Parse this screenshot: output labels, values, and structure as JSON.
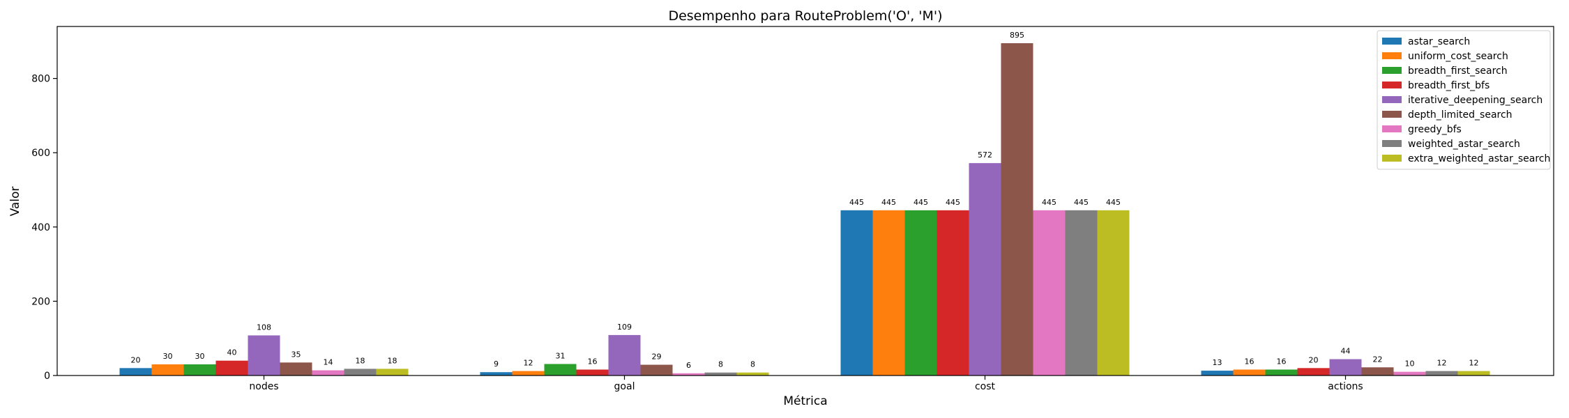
{
  "chart_data": {
    "type": "bar",
    "title": "Desempenho para RouteProblem('O', 'M')",
    "xlabel": "Métrica",
    "ylabel": "Valor",
    "categories": [
      "nodes",
      "goal",
      "cost",
      "actions"
    ],
    "ylim": [
      0,
      940
    ],
    "yticks": [
      0,
      200,
      400,
      600,
      800
    ],
    "legend_position": "top-right",
    "series": [
      {
        "name": "astar_search",
        "color": "#1f77b4",
        "values": [
          20,
          9,
          445,
          13
        ]
      },
      {
        "name": "uniform_cost_search",
        "color": "#ff7f0e",
        "values": [
          30,
          12,
          445,
          16
        ]
      },
      {
        "name": "breadth_first_search",
        "color": "#2ca02c",
        "values": [
          30,
          31,
          445,
          16
        ]
      },
      {
        "name": "breadth_first_bfs",
        "color": "#d62728",
        "values": [
          40,
          16,
          445,
          20
        ]
      },
      {
        "name": "iterative_deepening_search",
        "color": "#9467bd",
        "values": [
          108,
          109,
          572,
          44
        ]
      },
      {
        "name": "depth_limited_search",
        "color": "#8c564b",
        "values": [
          35,
          29,
          895,
          22
        ]
      },
      {
        "name": "greedy_bfs",
        "color": "#e377c2",
        "values": [
          14,
          6,
          445,
          10
        ]
      },
      {
        "name": "weighted_astar_search",
        "color": "#7f7f7f",
        "values": [
          18,
          8,
          445,
          12
        ]
      },
      {
        "name": "extra_weighted_astar_search",
        "color": "#bcbd22",
        "values": [
          18,
          8,
          445,
          12
        ]
      }
    ]
  }
}
